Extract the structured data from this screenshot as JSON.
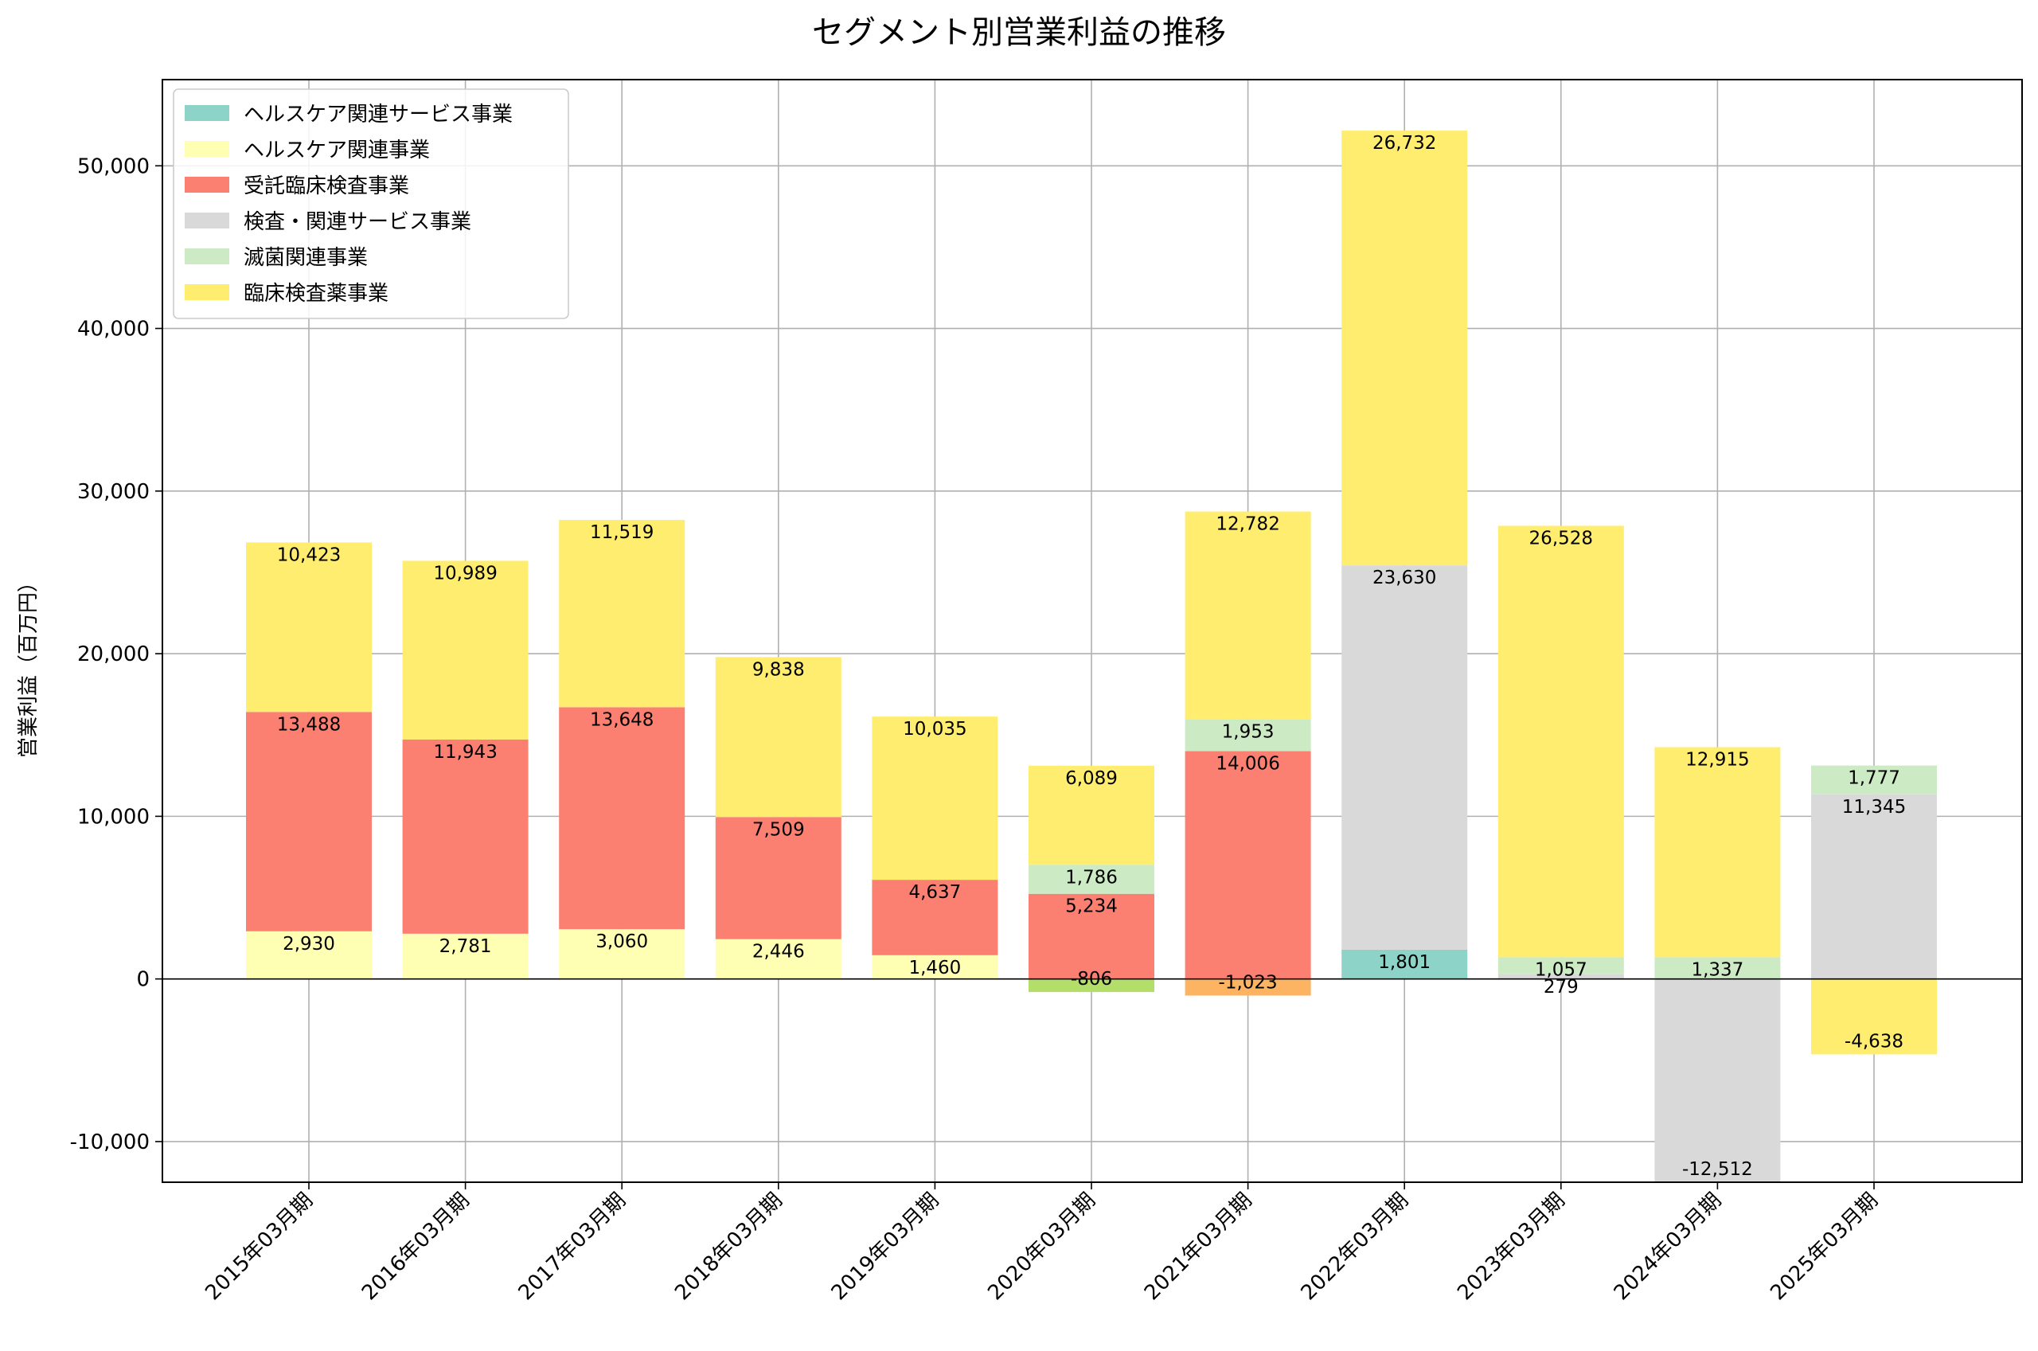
{
  "chart_data": {
    "type": "bar",
    "stacked": true,
    "title": "セグメント別営業利益の推移",
    "xlabel": "",
    "ylabel": "営業利益（百万円）",
    "ylim": [
      -12500,
      55300
    ],
    "yticks": [
      -10000,
      0,
      10000,
      20000,
      30000,
      40000,
      50000
    ],
    "ytick_labels": [
      "-10,000",
      "0",
      "10,000",
      "20,000",
      "30,000",
      "40,000",
      "50,000"
    ],
    "grid": true,
    "legend_position": "top-left",
    "categories": [
      "2015年03月期",
      "2016年03月期",
      "2017年03月期",
      "2018年03月期",
      "2019年03月期",
      "2020年03月期",
      "2021年03月期",
      "2022年03月期",
      "2023年03月期",
      "2024年03月期",
      "2025年03月期"
    ],
    "series": [
      {
        "name": "ヘルスケア関連サービス事業",
        "color": "#8dd3c7",
        "values": [
          null,
          null,
          null,
          null,
          null,
          null,
          null,
          1801,
          null,
          null,
          null
        ]
      },
      {
        "name": "ヘルスケア関連事業",
        "color": "#ffffb3",
        "values": [
          2930,
          2781,
          3060,
          2446,
          1460,
          null,
          null,
          null,
          null,
          null,
          null
        ]
      },
      {
        "name": "受託臨床検査事業",
        "color": "#fb8072",
        "values": [
          13488,
          11943,
          13648,
          7509,
          4637,
          5234,
          14006,
          null,
          null,
          null,
          null
        ]
      },
      {
        "name": "検査・関連サービス事業",
        "color": "#d9d9d9",
        "values": [
          null,
          null,
          null,
          null,
          null,
          null,
          null,
          23630,
          279,
          -12512,
          11345
        ]
      },
      {
        "name": "滅菌関連事業",
        "color": "#ccebc5",
        "values": [
          null,
          null,
          null,
          null,
          null,
          1786,
          1953,
          null,
          1057,
          1337,
          1777
        ]
      },
      {
        "name": "臨床検査薬事業",
        "color": "#ffed6f",
        "values": [
          10423,
          10989,
          11519,
          9838,
          10035,
          6089,
          12782,
          26732,
          26528,
          12915,
          -4638
        ]
      },
      {
        "name": "",
        "color": "#b3de69",
        "values": [
          null,
          null,
          null,
          null,
          null,
          -806,
          null,
          null,
          null,
          null,
          null
        ]
      },
      {
        "name": "",
        "color": "#fdb462",
        "values": [
          null,
          null,
          null,
          null,
          null,
          null,
          -1023,
          null,
          null,
          null,
          null
        ]
      }
    ]
  }
}
